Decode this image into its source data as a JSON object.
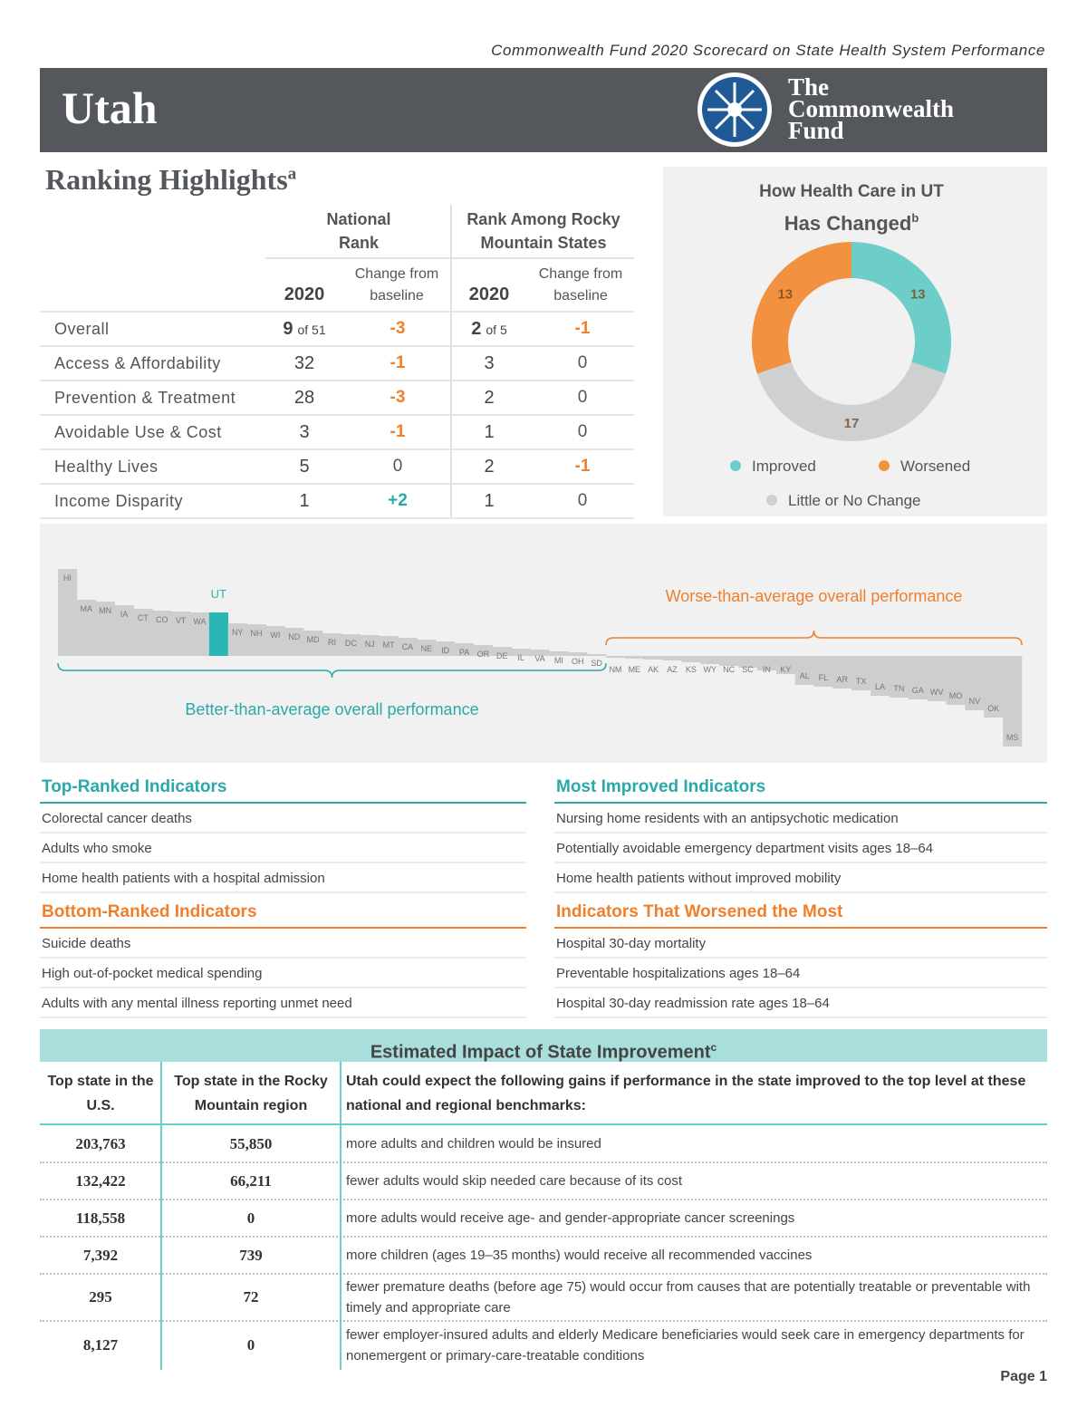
{
  "header": {
    "source": "Commonwealth Fund 2020 Scorecard on State Health System Performance",
    "state": "Utah",
    "logo": [
      "The",
      "Commonwealth",
      "Fund"
    ]
  },
  "highlights": {
    "title": "Ranking Highlights",
    "title_note": "a",
    "group_headers": [
      "National Rank",
      "Rank Among Rocky Mountain States"
    ],
    "column_headers": [
      "2020",
      "Change from baseline",
      "2020",
      "Change from baseline"
    ],
    "colors": {
      "worse": "#f07f2c",
      "better": "#2aa8aa",
      "neutral": "#555555"
    },
    "rows": [
      {
        "label": "Overall",
        "national": "9",
        "national_of": "of 51",
        "national_change": "-3",
        "regional": "2",
        "regional_of": "of 5",
        "regional_change": "-1"
      },
      {
        "label": "Access & Affordability",
        "national": "32",
        "national_change": "-1",
        "regional": "3",
        "regional_change": "0"
      },
      {
        "label": "Prevention & Treatment",
        "national": "28",
        "national_change": "-3",
        "regional": "2",
        "regional_change": "0"
      },
      {
        "label": "Avoidable Use & Cost",
        "national": "3",
        "national_change": "-1",
        "regional": "1",
        "regional_change": "0"
      },
      {
        "label": "Healthy Lives",
        "national": "5",
        "national_change": "0",
        "regional": "2",
        "regional_change": "-1"
      },
      {
        "label": "Income Disparity",
        "national": "1",
        "national_change": "+2",
        "regional": "1",
        "regional_change": "0"
      }
    ]
  },
  "chart_data": [
    {
      "type": "pie",
      "title_lines": [
        "How Health Care in UT",
        "Has Changed"
      ],
      "title_note": "b",
      "categories": [
        "Improved",
        "Little or No Change",
        "Worsened"
      ],
      "values": [
        13,
        17,
        13
      ],
      "colors": [
        "#6ccdc9",
        "#cfd0d2",
        "#f2913f"
      ]
    },
    {
      "type": "bar",
      "categories": [
        "HI",
        "MA",
        "MN",
        "IA",
        "CT",
        "CO",
        "VT",
        "WA",
        "UT",
        "NY",
        "NH",
        "WI",
        "ND",
        "MD",
        "RI",
        "DC",
        "NJ",
        "MT",
        "CA",
        "NE",
        "ID",
        "PA",
        "OR",
        "DE",
        "IL",
        "VA",
        "MI",
        "OH",
        "SD",
        "NM",
        "ME",
        "AK",
        "AZ",
        "KS",
        "WY",
        "NC",
        "SC",
        "IN",
        "KY",
        "AL",
        "FL",
        "AR",
        "TX",
        "LA",
        "TN",
        "GA",
        "WV",
        "MO",
        "NV",
        "OK",
        "MS"
      ],
      "values": [
        96,
        62,
        60,
        56,
        52,
        50,
        49,
        48,
        48,
        36,
        35,
        33,
        31,
        28,
        25,
        24,
        23,
        22,
        20,
        18,
        16,
        14,
        12,
        10,
        8,
        7,
        5,
        4,
        2,
        -2,
        -3,
        -4,
        -5,
        -7,
        -9,
        -11,
        -13,
        -16,
        -20,
        -32,
        -34,
        -36,
        -38,
        -44,
        -46,
        -48,
        -50,
        -54,
        -60,
        -68,
        -100
      ],
      "color": "#cdced0",
      "highlight": "UT",
      "highlight_color": "#2bb5b5",
      "annotations": [
        {
          "text": "Better-than-average overall performance",
          "color": "#2aa8aa"
        },
        {
          "text": "Worse-than-average overall performance",
          "color": "#f07f2c"
        }
      ]
    }
  ],
  "indicators": [
    {
      "title": "Top-Ranked Indicators",
      "color": "#2aa8aa",
      "items": [
        "Colorectal cancer deaths",
        "Adults who smoke",
        "Home health patients with a hospital admission"
      ]
    },
    {
      "title": "Most Improved Indicators",
      "color": "#2aa8aa",
      "items": [
        "Nursing home residents with an antipsychotic medication",
        "Potentially avoidable emergency department visits ages 18–64",
        "Home health patients without improved mobility"
      ]
    },
    {
      "title": "Bottom-Ranked Indicators",
      "color": "#f07f2c",
      "items": [
        "Suicide deaths",
        "High out-of-pocket medical spending",
        "Adults with any mental illness reporting unmet need"
      ]
    },
    {
      "title": "Indicators That Worsened the Most",
      "color": "#f07f2c",
      "items": [
        "Hospital 30-day mortality",
        "Preventable hospitalizations ages 18–64",
        "Hospital 30-day readmission rate ages 18–64"
      ]
    }
  ],
  "impact": {
    "title": "Estimated Impact of State Improvement",
    "title_note": "c",
    "headers": [
      "Top state in the U.S.",
      "Top state in the Rocky Mountain region",
      "Utah could expect the following gains if performance in the state improved to the top level at these national and regional benchmarks:"
    ],
    "rows": [
      [
        "203,763",
        "55,850",
        "more adults and children would be insured"
      ],
      [
        "132,422",
        "66,211",
        "fewer adults would skip needed care because of its cost"
      ],
      [
        "118,558",
        "0",
        "more adults would receive age- and gender-appropriate cancer screenings"
      ],
      [
        "7,392",
        "739",
        "more children (ages 19–35 months) would receive all recommended vaccines"
      ],
      [
        "295",
        "72",
        "fewer premature deaths (before age 75) would occur from causes that are potentially treatable or preventable with timely and appropriate care"
      ],
      [
        "8,127",
        "0",
        "fewer employer-insured adults and elderly Medicare beneficiaries would seek care in emergency departments for nonemergent or primary-care-treatable conditions"
      ]
    ]
  },
  "footer": {
    "page": "Page 1"
  }
}
